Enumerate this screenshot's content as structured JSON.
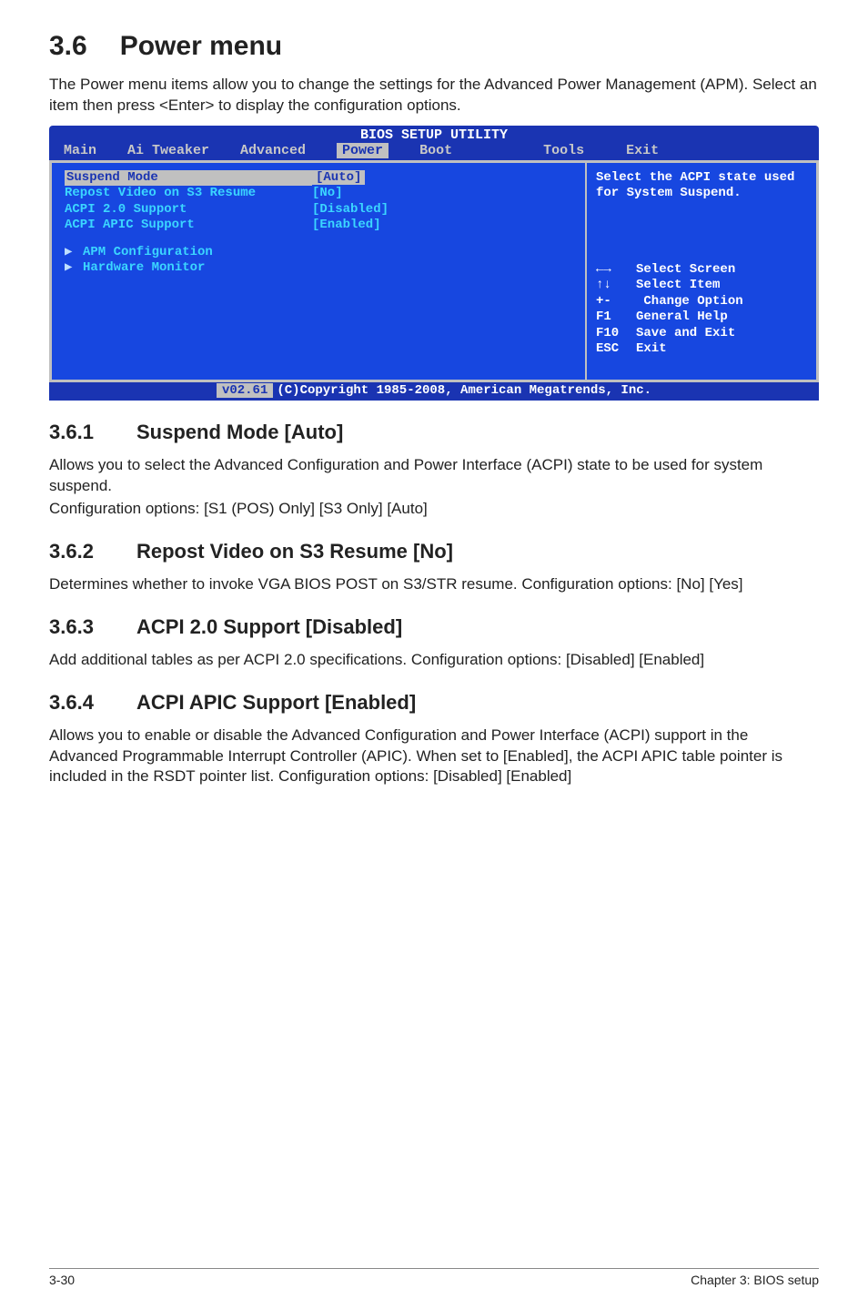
{
  "title_num": "3.6",
  "title_text": "Power menu",
  "intro": "The Power menu items allow you to change the settings for the Advanced Power Management (APM). Select an item then press <Enter> to display the configuration options.",
  "bios": {
    "header": "BIOS SETUP UTILITY",
    "tabs": {
      "main": "Main",
      "ai": "Ai Tweaker",
      "adv": "Advanced",
      "power": "Power",
      "boot": "Boot",
      "tools": "Tools",
      "exit": "Exit"
    },
    "rows": {
      "suspend": {
        "label": "Suspend Mode",
        "value": "[Auto]"
      },
      "repost": {
        "label": "Repost Video on S3 Resume",
        "value": "[No]"
      },
      "acpi20": {
        "label": "ACPI 2.0 Support",
        "value": "[Disabled]"
      },
      "apic": {
        "label": "ACPI APIC Support",
        "value": "[Enabled]"
      }
    },
    "submenus": {
      "apm": "APM Configuration",
      "hwmon": "Hardware Monitor"
    },
    "help": "Select the ACPI state used for System Suspend.",
    "keys": {
      "lr": {
        "sym": "←→",
        "desc": "Select Screen"
      },
      "ud": {
        "sym": "↑↓",
        "desc": "Select Item"
      },
      "pm": {
        "sym": "+-",
        "desc": " Change Option"
      },
      "f1": {
        "sym": "F1",
        "desc": "General Help"
      },
      "f10": {
        "sym": "F10",
        "desc": "Save and Exit"
      },
      "esc": {
        "sym": "ESC",
        "desc": "Exit"
      }
    },
    "footer": {
      "ver": "v02.61",
      "copy": "(C)Copyright 1985-2008, American Megatrends, Inc."
    }
  },
  "s361": {
    "num": "3.6.1",
    "title": "Suspend Mode [Auto]",
    "p1": "Allows you to select the Advanced Configuration and Power Interface (ACPI) state to be used for system suspend.",
    "p2": "Configuration options: [S1 (POS) Only] [S3 Only] [Auto]"
  },
  "s362": {
    "num": "3.6.2",
    "title": "Repost Video on S3 Resume [No]",
    "p1": "Determines whether to invoke VGA BIOS POST on S3/STR resume. Configuration options: [No] [Yes]"
  },
  "s363": {
    "num": "3.6.3",
    "title": "ACPI 2.0 Support [Disabled]",
    "p1": "Add additional tables as per ACPI 2.0 specifications. Configuration options: [Disabled] [Enabled]"
  },
  "s364": {
    "num": "3.6.4",
    "title": "ACPI APIC Support [Enabled]",
    "p1": "Allows you to enable or disable the Advanced Configuration and Power Interface (ACPI) support in the Advanced Programmable Interrupt Controller (APIC). When set to [Enabled], the ACPI APIC table pointer is included in the RSDT pointer list. Configuration options: [Disabled] [Enabled]"
  },
  "footer": {
    "left": "3-30",
    "right": "Chapter 3: BIOS setup"
  }
}
